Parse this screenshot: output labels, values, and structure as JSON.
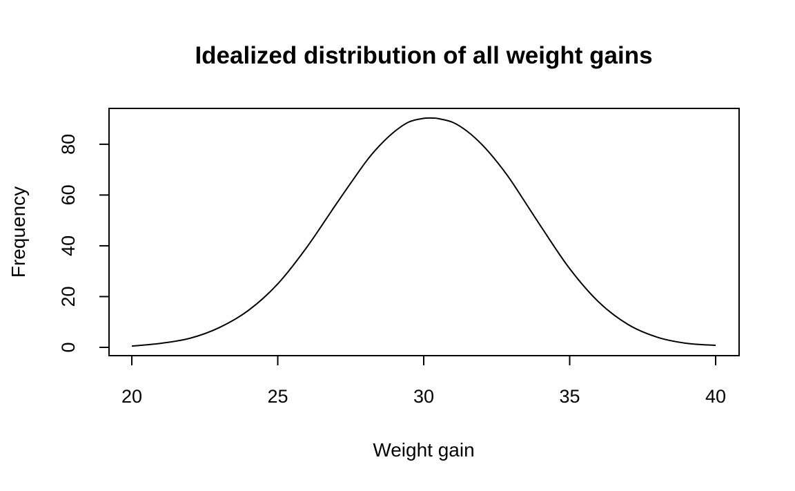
{
  "chart_data": {
    "type": "line",
    "title": "Idealized distribution of all weight gains",
    "xlabel": "Weight gain",
    "ylabel": "Frequency",
    "xlim": [
      20,
      40
    ],
    "ylim": [
      0,
      90.3
    ],
    "xticks": [
      20,
      25,
      30,
      35,
      40
    ],
    "yticks": [
      0,
      20,
      40,
      60,
      80
    ],
    "grid": false,
    "legend": "none",
    "line_color": "#000000",
    "series": [
      {
        "x": [
          20,
          21,
          22,
          23,
          24,
          25,
          26,
          27,
          28,
          28.5,
          29,
          29.5,
          30,
          30.3,
          30.5,
          31,
          31.5,
          32,
          32.5,
          33,
          34,
          35,
          36,
          37,
          38,
          39,
          40
        ],
        "y": [
          0.5,
          1.6,
          3.6,
          7.8,
          14.6,
          25.0,
          39.5,
          56.4,
          72.8,
          79.6,
          85.0,
          88.8,
          90.2,
          90.3,
          90.1,
          88.6,
          85.0,
          79.8,
          73.2,
          65.5,
          47.9,
          31.0,
          17.8,
          9.0,
          4.0,
          1.6,
          0.8
        ]
      }
    ]
  }
}
